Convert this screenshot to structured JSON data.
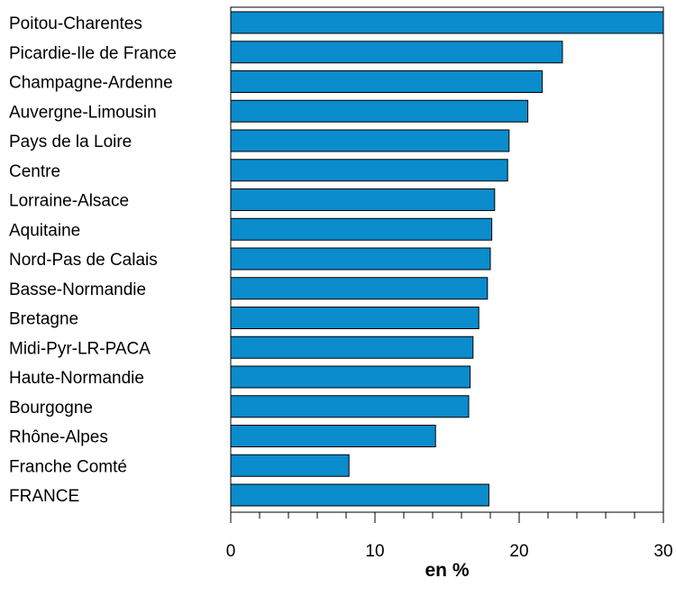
{
  "chart_data": {
    "type": "bar",
    "orientation": "horizontal",
    "categories": [
      "Poitou-Charentes",
      "Picardie-Ile de France",
      "Champagne-Ardenne",
      "Auvergne-Limousin",
      "Pays de la Loire",
      "Centre",
      "Lorraine-Alsace",
      "Aquitaine",
      "Nord-Pas de Calais",
      "Basse-Normandie",
      "Bretagne",
      "Midi-Pyr-LR-PACA",
      "Haute-Normandie",
      "Bourgogne",
      "Rhône-Alpes",
      "Franche Comté",
      "FRANCE"
    ],
    "values": [
      30.0,
      23.0,
      21.6,
      20.6,
      19.3,
      19.2,
      18.3,
      18.1,
      18.0,
      17.8,
      17.2,
      16.8,
      16.6,
      16.5,
      14.2,
      8.2,
      17.9
    ],
    "xlabel": "en %",
    "xlim": [
      0,
      30
    ],
    "xticks": [
      "0",
      "10",
      "20",
      "30"
    ],
    "minor_tick_step": 2,
    "grid": false,
    "bar_color": "#0a8ccd",
    "bar_edge_color": "#000000"
  }
}
